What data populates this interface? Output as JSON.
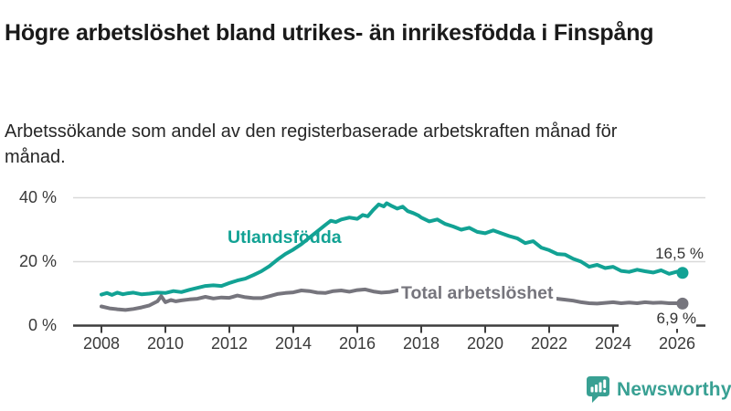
{
  "header": {
    "title": "Högre arbetslöshet bland utrikes- än inrikesfödda i Finspång",
    "subtitle": "Arbetssökande som andel av den registerbaserade arbetskraften månad för månad."
  },
  "colors": {
    "accent_teal": "#12a294",
    "series_gray": "#76757d",
    "grid": "#d9d9d9",
    "axis": "#3d3d3d",
    "text_dark": "#1a1a1a",
    "logo_teal": "#38a093"
  },
  "chart_data": {
    "type": "line",
    "title": "Högre arbetslöshet bland utrikes- än inrikesfödda i Finspång",
    "subtitle": "Arbetssökande som andel av den registerbaserade arbetskraften månad för månad.",
    "unit": "%",
    "grid": "horizontal",
    "legend": "inline-labels",
    "x_axis": {
      "range": [
        2007.9,
        2026.9
      ],
      "ticks": [
        {
          "label": "2008",
          "value": 2008
        },
        {
          "label": "2010",
          "value": 2010
        },
        {
          "label": "2012",
          "value": 2012
        },
        {
          "label": "2014",
          "value": 2014
        },
        {
          "label": "2016",
          "value": 2016
        },
        {
          "label": "2018",
          "value": 2018
        },
        {
          "label": "2020",
          "value": 2020
        },
        {
          "label": "2022",
          "value": 2022
        },
        {
          "label": "2024",
          "value": 2024
        },
        {
          "label": "2026",
          "value": 2026
        }
      ]
    },
    "y_axis": {
      "range": [
        0,
        40
      ],
      "ticks": [
        {
          "label": "40 %",
          "value": 40
        },
        {
          "label": "20 %",
          "value": 20
        },
        {
          "label": "0 %",
          "value": 0
        }
      ]
    },
    "series": [
      {
        "name": "Utlandsfödda",
        "color": "#12a294",
        "end_label": "16,5 %",
        "end_value": 16.5,
        "points": [
          [
            2008.0,
            9.7
          ],
          [
            2008.17,
            10.2
          ],
          [
            2008.33,
            9.6
          ],
          [
            2008.5,
            10.3
          ],
          [
            2008.67,
            9.8
          ],
          [
            2008.83,
            10.1
          ],
          [
            2009.0,
            10.3
          ],
          [
            2009.25,
            9.8
          ],
          [
            2009.5,
            10.0
          ],
          [
            2009.75,
            10.3
          ],
          [
            2010.0,
            10.2
          ],
          [
            2010.25,
            10.8
          ],
          [
            2010.5,
            10.5
          ],
          [
            2010.75,
            11.2
          ],
          [
            2011.0,
            11.8
          ],
          [
            2011.25,
            12.4
          ],
          [
            2011.5,
            12.6
          ],
          [
            2011.75,
            12.4
          ],
          [
            2012.0,
            13.3
          ],
          [
            2012.25,
            14.1
          ],
          [
            2012.5,
            14.7
          ],
          [
            2012.75,
            15.8
          ],
          [
            2013.0,
            17.0
          ],
          [
            2013.25,
            18.6
          ],
          [
            2013.5,
            20.6
          ],
          [
            2013.75,
            22.4
          ],
          [
            2014.0,
            23.8
          ],
          [
            2014.25,
            25.5
          ],
          [
            2014.5,
            27.5
          ],
          [
            2014.75,
            29.5
          ],
          [
            2015.0,
            31.5
          ],
          [
            2015.17,
            32.8
          ],
          [
            2015.33,
            32.4
          ],
          [
            2015.5,
            33.2
          ],
          [
            2015.75,
            33.8
          ],
          [
            2016.0,
            33.4
          ],
          [
            2016.17,
            34.6
          ],
          [
            2016.33,
            34.2
          ],
          [
            2016.5,
            36.2
          ],
          [
            2016.67,
            37.9
          ],
          [
            2016.83,
            37.3
          ],
          [
            2016.92,
            38.3
          ],
          [
            2017.08,
            37.4
          ],
          [
            2017.25,
            36.6
          ],
          [
            2017.42,
            37.2
          ],
          [
            2017.58,
            35.8
          ],
          [
            2017.75,
            35.2
          ],
          [
            2017.92,
            34.4
          ],
          [
            2018.0,
            33.8
          ],
          [
            2018.25,
            32.6
          ],
          [
            2018.5,
            33.2
          ],
          [
            2018.75,
            31.8
          ],
          [
            2019.0,
            31.0
          ],
          [
            2019.25,
            30.0
          ],
          [
            2019.5,
            30.6
          ],
          [
            2019.75,
            29.3
          ],
          [
            2020.0,
            28.9
          ],
          [
            2020.25,
            29.8
          ],
          [
            2020.5,
            28.9
          ],
          [
            2020.75,
            28.0
          ],
          [
            2021.0,
            27.3
          ],
          [
            2021.25,
            25.8
          ],
          [
            2021.5,
            26.4
          ],
          [
            2021.75,
            24.4
          ],
          [
            2022.0,
            23.6
          ],
          [
            2022.25,
            22.4
          ],
          [
            2022.5,
            22.2
          ],
          [
            2022.75,
            20.9
          ],
          [
            2023.0,
            20.0
          ],
          [
            2023.25,
            18.4
          ],
          [
            2023.5,
            19.0
          ],
          [
            2023.75,
            18.0
          ],
          [
            2024.0,
            18.4
          ],
          [
            2024.25,
            17.1
          ],
          [
            2024.5,
            16.8
          ],
          [
            2024.75,
            17.5
          ],
          [
            2025.0,
            17.0
          ],
          [
            2025.25,
            16.6
          ],
          [
            2025.5,
            17.3
          ],
          [
            2025.75,
            16.2
          ],
          [
            2026.0,
            16.9
          ],
          [
            2026.17,
            16.5
          ]
        ]
      },
      {
        "name": "Total arbetslöshet",
        "color": "#76757d",
        "end_label": "6,9 %",
        "end_value": 6.9,
        "points": [
          [
            2008.0,
            6.0
          ],
          [
            2008.25,
            5.4
          ],
          [
            2008.5,
            5.1
          ],
          [
            2008.75,
            4.9
          ],
          [
            2009.0,
            5.2
          ],
          [
            2009.25,
            5.7
          ],
          [
            2009.5,
            6.3
          ],
          [
            2009.75,
            7.6
          ],
          [
            2009.87,
            9.2
          ],
          [
            2010.0,
            7.3
          ],
          [
            2010.17,
            8.0
          ],
          [
            2010.33,
            7.6
          ],
          [
            2010.5,
            7.9
          ],
          [
            2010.75,
            8.2
          ],
          [
            2011.0,
            8.4
          ],
          [
            2011.25,
            9.0
          ],
          [
            2011.5,
            8.5
          ],
          [
            2011.75,
            8.8
          ],
          [
            2012.0,
            8.7
          ],
          [
            2012.25,
            9.4
          ],
          [
            2012.5,
            8.9
          ],
          [
            2012.75,
            8.6
          ],
          [
            2013.0,
            8.6
          ],
          [
            2013.25,
            9.2
          ],
          [
            2013.5,
            9.9
          ],
          [
            2013.75,
            10.2
          ],
          [
            2014.0,
            10.4
          ],
          [
            2014.25,
            11.0
          ],
          [
            2014.5,
            10.8
          ],
          [
            2014.75,
            10.3
          ],
          [
            2015.0,
            10.2
          ],
          [
            2015.25,
            10.8
          ],
          [
            2015.5,
            11.0
          ],
          [
            2015.75,
            10.6
          ],
          [
            2016.0,
            11.1
          ],
          [
            2016.25,
            11.3
          ],
          [
            2016.5,
            10.7
          ],
          [
            2016.75,
            10.3
          ],
          [
            2017.0,
            10.5
          ],
          [
            2017.25,
            11.0
          ],
          [
            2017.5,
            10.8
          ],
          [
            2017.75,
            10.4
          ],
          [
            2018.0,
            10.6
          ],
          [
            2018.25,
            10.2
          ],
          [
            2018.5,
            10.4
          ],
          [
            2018.75,
            10.0
          ],
          [
            2019.0,
            10.1
          ],
          [
            2019.25,
            9.8
          ],
          [
            2019.5,
            10.0
          ],
          [
            2019.75,
            9.7
          ],
          [
            2020.0,
            10.0
          ],
          [
            2020.25,
            11.0
          ],
          [
            2020.5,
            10.8
          ],
          [
            2020.75,
            10.4
          ],
          [
            2021.0,
            10.0
          ],
          [
            2021.25,
            9.6
          ],
          [
            2021.5,
            9.2
          ],
          [
            2021.75,
            9.0
          ],
          [
            2022.0,
            8.7
          ],
          [
            2022.25,
            8.4
          ],
          [
            2022.5,
            8.1
          ],
          [
            2022.75,
            7.8
          ],
          [
            2023.0,
            7.3
          ],
          [
            2023.25,
            7.0
          ],
          [
            2023.5,
            6.9
          ],
          [
            2023.75,
            7.1
          ],
          [
            2024.0,
            7.3
          ],
          [
            2024.25,
            7.0
          ],
          [
            2024.5,
            7.2
          ],
          [
            2024.75,
            7.0
          ],
          [
            2025.0,
            7.3
          ],
          [
            2025.25,
            7.1
          ],
          [
            2025.5,
            7.2
          ],
          [
            2025.75,
            7.0
          ],
          [
            2026.0,
            7.0
          ],
          [
            2026.17,
            6.9
          ]
        ]
      }
    ]
  },
  "logo": {
    "text": "Newsworthy"
  }
}
